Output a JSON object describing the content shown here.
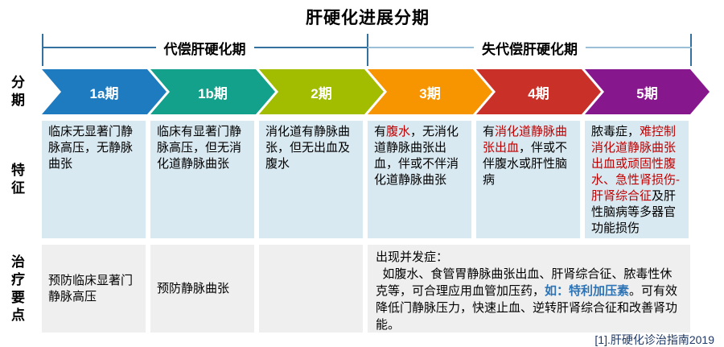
{
  "title": "肝硬化进展分期",
  "footnote": "[1].肝硬化诊治指南2019",
  "row_labels": {
    "stage": "分期",
    "feature": "特征",
    "treatment": "治疗要点"
  },
  "brackets": [
    {
      "label": "代偿肝硬化期"
    },
    {
      "label": "失代偿肝硬化期"
    }
  ],
  "colors": {
    "red": "#C00000",
    "blue": "#2E74B5",
    "bracket_dark": "#34719E",
    "bracket_light": "#9BBFD6",
    "feature_bg": "#D9E9F1",
    "treatment_bg": "#EFEFEF",
    "footnote_color": "#1F3864"
  },
  "stages": [
    {
      "label": "1a期",
      "color": "#1F7BBF",
      "feature": [
        {
          "t": "临床无显著门静脉高压，无静脉曲张"
        }
      ],
      "treatment": "预防临床显著门静脉高压"
    },
    {
      "label": "1b期",
      "color": "#13A18B",
      "feature": [
        {
          "t": "临床有显著门静脉高压，但无消化道静脉曲张"
        }
      ],
      "treatment": "预防静脉曲张"
    },
    {
      "label": "2期",
      "color": "#A2BD00",
      "feature": [
        {
          "t": "消化道有静脉曲张，但无出血及腹水"
        }
      ],
      "treatment": ""
    },
    {
      "label": "3期",
      "color": "#F79501",
      "feature": [
        {
          "t": "有"
        },
        {
          "t": "腹水",
          "c": "red"
        },
        {
          "t": "，无消化道静脉曲张出血，伴或不伴消化道静脉曲张"
        }
      ]
    },
    {
      "label": "4期",
      "color": "#C93128",
      "feature": [
        {
          "t": "有"
        },
        {
          "t": "消化道静脉曲张出血",
          "c": "red"
        },
        {
          "t": "，伴或不伴腹水或肝性脑病"
        }
      ]
    },
    {
      "label": "5期",
      "color": "#87178D",
      "feature": [
        {
          "t": "脓毒症，"
        },
        {
          "t": "难控制消化道静脉曲张出血或顽固性腹水、急性肾损伤-肝肾综合征",
          "c": "red"
        },
        {
          "t": "及肝性脑病等多器官功能损伤"
        }
      ]
    }
  ],
  "merged_treatment": [
    {
      "t": "出现并发症：\n  如腹水、食管胃静脉曲张出血、肝肾综合征、脓毒性休克等，可合理应用血管加压药，"
    },
    {
      "t": "如：特利加压素",
      "c": "blue"
    },
    {
      "t": "。可有效降低门静脉压力，快速止血、逆转肝肾综合征和改善肾功能。"
    }
  ]
}
